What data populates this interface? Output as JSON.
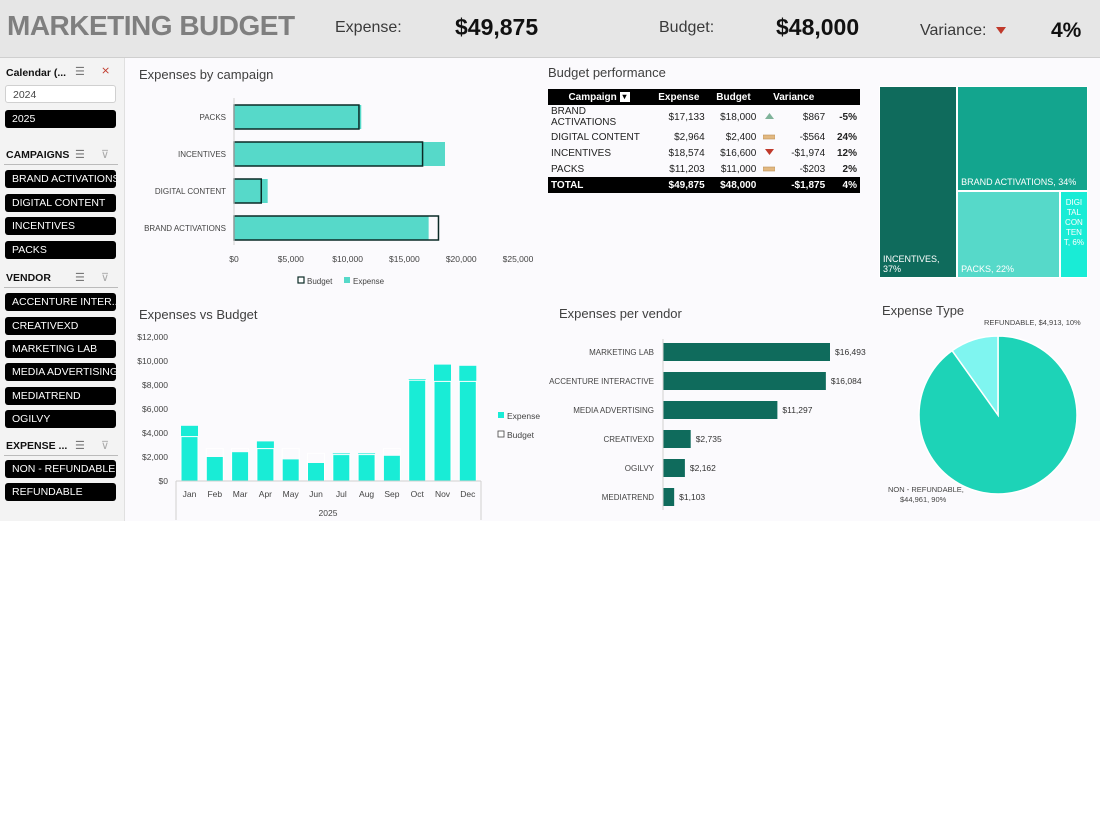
{
  "header": {
    "title": "MARKETING BUDGET",
    "expense_label": "Expense:",
    "expense_value": "$49,875",
    "budget_label": "Budget:",
    "budget_value": "$48,000",
    "variance_label": "Variance:",
    "variance_value": "4%",
    "variance_icon": "triangle-down-icon"
  },
  "sidebar": {
    "calendar": {
      "title": "Calendar (...",
      "items": [
        "2024",
        "2025"
      ],
      "selected": "2025"
    },
    "campaigns": {
      "title": "CAMPAIGNS",
      "items": [
        "BRAND ACTIVATIONS",
        "DIGITAL CONTENT",
        "INCENTIVES",
        "PACKS"
      ]
    },
    "vendor": {
      "title": "VENDOR",
      "items": [
        "ACCENTURE INTER...",
        "CREATIVEXD",
        "MARKETING LAB",
        "MEDIA ADVERTISING",
        "MEDIATREND",
        "OGILVY"
      ]
    },
    "expense_type": {
      "title": "EXPENSE ...",
      "items": [
        "NON - REFUNDABLE",
        "REFUNDABLE"
      ]
    }
  },
  "colors": {
    "accent": "#56d9c9",
    "dark_teal": "#0f6b5c",
    "expense_bright": "#19ecd6",
    "pie_main": "#1dd3b7",
    "pie_slice": "#7ff5f0",
    "positive_icon": "#7fb39a",
    "negative_icon": "#c0392b",
    "neutral_icon": "#e2b880"
  },
  "panels": {
    "campaign": {
      "title": "Expenses by campaign"
    },
    "budget_performance": {
      "title": "Budget performance",
      "columns": [
        "Campaign",
        "Expense",
        "Budget",
        "Variance",
        ""
      ],
      "rows": [
        {
          "campaign": "BRAND ACTIVATIONS",
          "expense": "$17,133",
          "budget": "$18,000",
          "icon": "triangle-up-icon",
          "icon_color": "#7fb39a",
          "variance": "$867",
          "pct": "-5%"
        },
        {
          "campaign": "DIGITAL CONTENT",
          "expense": "$2,964",
          "budget": "$2,400",
          "icon": "dash-icon",
          "icon_color": "#e2b880",
          "variance": "-$564",
          "pct": "24%"
        },
        {
          "campaign": "INCENTIVES",
          "expense": "$18,574",
          "budget": "$16,600",
          "icon": "triangle-down-icon",
          "icon_color": "#c0392b",
          "variance": "-$1,974",
          "pct": "12%"
        },
        {
          "campaign": "PACKS",
          "expense": "$11,203",
          "budget": "$11,000",
          "icon": "dash-icon",
          "icon_color": "#e2b880",
          "variance": "-$203",
          "pct": "2%"
        }
      ],
      "total": {
        "campaign": "TOTAL",
        "expense": "$49,875",
        "budget": "$48,000",
        "variance": "-$1,875",
        "pct": "4%"
      }
    },
    "monthly": {
      "title": "Expenses vs Budget"
    },
    "vendor": {
      "title": "Expenses per vendor"
    },
    "expense_type": {
      "title": "Expense Type"
    }
  },
  "chart_data": [
    {
      "id": "campaign",
      "type": "bar",
      "orientation": "horizontal",
      "categories": [
        "PACKS",
        "INCENTIVES",
        "DIGITAL CONTENT",
        "BRAND ACTIVATIONS"
      ],
      "series": [
        {
          "name": "Budget",
          "values": [
            11000,
            16600,
            2400,
            18000
          ]
        },
        {
          "name": "Expense",
          "values": [
            11203,
            18574,
            2964,
            17133
          ]
        }
      ],
      "xlim": [
        0,
        25000
      ],
      "xticks": [
        "$0",
        "$5,000",
        "$10,000",
        "$15,000",
        "$20,000",
        "$25,000"
      ],
      "legend": "bottom"
    },
    {
      "id": "monthly",
      "type": "bar",
      "categories": [
        "Jan",
        "Feb",
        "Mar",
        "Apr",
        "May",
        "Jun",
        "Jul",
        "Aug",
        "Sep",
        "Oct",
        "Nov",
        "Dec"
      ],
      "series": [
        {
          "name": "Expense",
          "values": [
            4600,
            2000,
            2400,
            3300,
            1800,
            1500,
            2300,
            2300,
            2100,
            8500,
            9700,
            9600
          ]
        },
        {
          "name": "Budget",
          "values": [
            3700,
            2700,
            2700,
            2700,
            2700,
            2300,
            2200,
            2200,
            2700,
            8400,
            8300,
            8300
          ]
        }
      ],
      "ylim": [
        0,
        12000
      ],
      "yticks": [
        "$0",
        "$2,000",
        "$4,000",
        "$6,000",
        "$8,000",
        "$10,000",
        "$12,000"
      ],
      "xgroup_label": "2025",
      "legend": "right"
    },
    {
      "id": "vendor",
      "type": "bar",
      "orientation": "horizontal",
      "categories": [
        "MARKETING LAB",
        "ACCENTURE INTERACTIVE",
        "MEDIA ADVERTISING",
        "CREATIVEXD",
        "OGILVY",
        "MEDIATREND"
      ],
      "values": [
        16493,
        16084,
        11297,
        2735,
        2162,
        1103
      ],
      "labels": [
        "$16,493",
        "$16,084",
        "$11,297",
        "$2,735",
        "$2,162",
        "$1,103"
      ]
    },
    {
      "id": "treemap",
      "type": "treemap",
      "items": [
        {
          "label": "INCENTIVES, 37%",
          "value": 37,
          "color": "#0f6b5c"
        },
        {
          "label": "BRAND ACTIVATIONS, 34%",
          "value": 34,
          "color": "#13a58e"
        },
        {
          "label": "PACKS, 22%",
          "value": 22,
          "color": "#56d9c9"
        },
        {
          "label": "DIGI TAL CON TEN T, 6%",
          "value": 6,
          "color": "#19ecd6"
        }
      ]
    },
    {
      "id": "expense_type",
      "type": "pie",
      "slices": [
        {
          "label": "NON - REFUNDABLE, $44,961, 90%",
          "value": 44961,
          "color": "#1dd3b7"
        },
        {
          "label": "REFUNDABLE, $4,913, 10%",
          "value": 4913,
          "color": "#7ff5f0"
        }
      ]
    }
  ]
}
